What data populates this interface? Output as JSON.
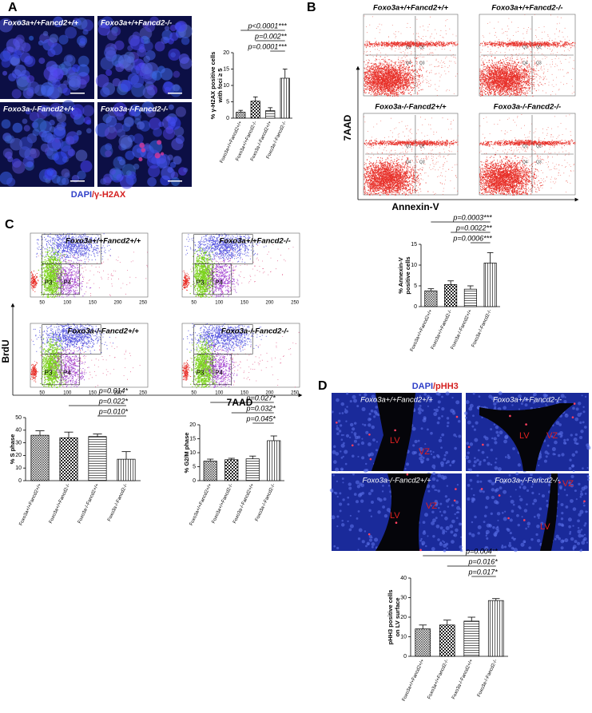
{
  "panel_labels": [
    "A",
    "B",
    "C",
    "D"
  ],
  "genotypes": [
    "Foxo3a+/+Fancd2+/+",
    "Foxo3a+/+Fancd2-/-",
    "Foxo3a-/-Fancd2+/+",
    "Foxo3a-/-Fancd2-/-"
  ],
  "panel_a": {
    "stain": [
      "DAPI",
      "/γ-H2AX"
    ]
  },
  "panel_b": {
    "y_axis": "7AAD",
    "x_axis": "Annexin-V",
    "gates": [
      "Q1",
      "Q2",
      "Q3",
      "Q4"
    ]
  },
  "panel_c": {
    "y_axis": "BrdU",
    "x_axis": "7AAD",
    "gates": [
      "P3",
      "P4"
    ],
    "ticks": [
      "50",
      "100",
      "150",
      "200",
      "250"
    ]
  },
  "panel_d": {
    "stain": [
      "DAPI",
      "/pHH3"
    ],
    "regions": [
      "LV",
      "VZ"
    ]
  },
  "chart_data": [
    {
      "type": "bar",
      "ylabel": [
        "% γ-H2AX positive cells",
        "with foci ≥ 5"
      ],
      "categories": [
        "Foxo3a+/+Fancd2+/+",
        "Foxo3a+/+Fancd2-/-",
        "Foxo3a-/-Fancd2+/+",
        "Foxo3a-/-Fancd2-/-"
      ],
      "values": [
        1.8,
        5.2,
        2.3,
        12.2
      ],
      "errors": [
        0.6,
        1.3,
        0.9,
        2.8
      ],
      "color": "#000000",
      "ylim": [
        0,
        20
      ],
      "yticks": [
        0,
        5,
        10,
        15,
        20
      ],
      "annotations": [
        "p<0.0001***",
        "p=0.002**",
        "p=0.0001***"
      ]
    },
    {
      "type": "bar",
      "ylabel": [
        "% Annexin-V",
        "positive cells"
      ],
      "categories": [
        "Foxo3a+/+Fancd2+/+",
        "Foxo3a+/+Fancd2-/-",
        "Foxo3a-/-Fancd2+/+",
        "Foxo3a-/-Fancd2-/-"
      ],
      "values": [
        3.8,
        5.3,
        4.2,
        10.5
      ],
      "errors": [
        0.5,
        0.9,
        0.8,
        2.5
      ],
      "color": "#000000",
      "ylim": [
        0,
        15
      ],
      "yticks": [
        0,
        5,
        10,
        15
      ],
      "annotations": [
        "p=0.0003***",
        "p=0.0022**",
        "p=0.0006***"
      ]
    },
    {
      "type": "bar",
      "ylabel": [
        "% S phase"
      ],
      "categories": [
        "Foxo3a+/+Fancd2+/+",
        "Foxo3a+/+Fancd2-/-",
        "Foxo3a-/-Fancd2+/+",
        "Foxo3a-/-Fancd2-/-"
      ],
      "values": [
        36,
        34,
        35,
        17
      ],
      "errors": [
        3.5,
        4.5,
        2,
        6
      ],
      "color": "#000000",
      "ylim": [
        0,
        50
      ],
      "yticks": [
        0,
        10,
        20,
        30,
        40,
        50
      ],
      "annotations": [
        "p=0.014*",
        "p=0.022*",
        "p=0.010*"
      ]
    },
    {
      "type": "bar",
      "ylabel": [
        "% G2/M phase"
      ],
      "categories": [
        "Foxo3a+/+Fancd2+/+",
        "Foxo3a+/+Fancd2-/-",
        "Foxo3a-/-Fancd2+/+",
        "Foxo3a-/-Fancd2-/-"
      ],
      "values": [
        7,
        7.5,
        7.8,
        14.3
      ],
      "errors": [
        0.7,
        0.5,
        1,
        1.7
      ],
      "color": "#000000",
      "ylim": [
        0,
        20
      ],
      "yticks": [
        0,
        5,
        10,
        15,
        20
      ],
      "annotations": [
        "p=0.027*",
        "p=0.032*",
        "p=0.045*"
      ]
    },
    {
      "type": "bar",
      "ylabel": [
        "pHH3 positive cells",
        "on LV surface"
      ],
      "categories": [
        "Foxo3a+/+Fancd2+/+",
        "Foxo3a+/+Fancd2-/-",
        "Foxo3a-/-Fancd2+/+",
        "Foxo3a-/-Fancd2-/-"
      ],
      "values": [
        14,
        16,
        18,
        28.5
      ],
      "errors": [
        2,
        2.5,
        2,
        1
      ],
      "color": "#000000",
      "ylim": [
        0,
        40
      ],
      "yticks": [
        0,
        10,
        20,
        30,
        40
      ],
      "annotations": [
        "p=0.004**",
        "p=0.016*",
        "p=0.017*"
      ]
    }
  ]
}
